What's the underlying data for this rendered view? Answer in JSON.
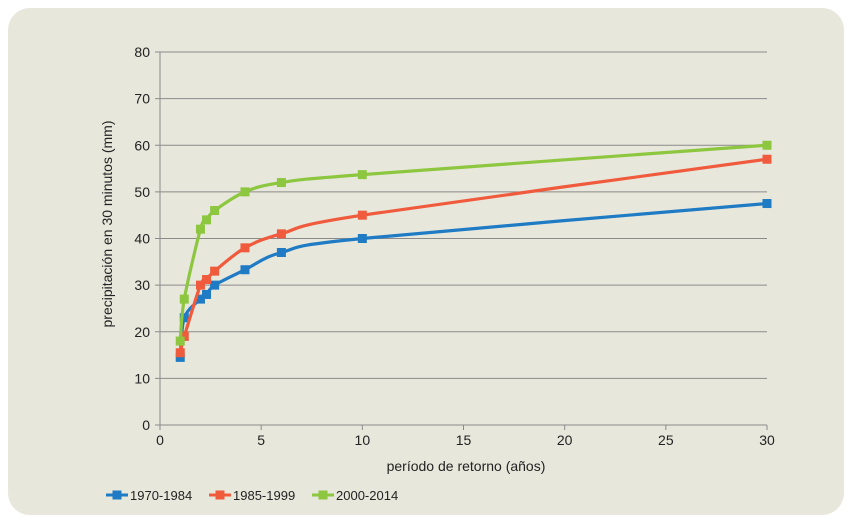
{
  "chart_data": {
    "type": "line",
    "xlabel": "período de retorno (años)",
    "ylabel": "precipitación en 30 minutos (mm)",
    "xlim": [
      0,
      30
    ],
    "ylim": [
      0,
      80
    ],
    "x_ticks": [
      0,
      5,
      10,
      15,
      20,
      25,
      30
    ],
    "y_ticks": [
      0,
      10,
      20,
      30,
      40,
      50,
      60,
      70,
      80
    ],
    "grid": "horizontal",
    "smooth": true,
    "legend_position": "bottom-left",
    "background_color": "#e8e7dc",
    "series": [
      {
        "name": "1970-1984",
        "color": "#1f7bc4",
        "points": [
          {
            "x": 1.0,
            "y": 14.5
          },
          {
            "x": 1.2,
            "y": 23.0
          },
          {
            "x": 2.0,
            "y": 27.0
          },
          {
            "x": 2.3,
            "y": 28.0
          },
          {
            "x": 2.7,
            "y": 30.0
          },
          {
            "x": 4.2,
            "y": 33.3
          },
          {
            "x": 6.0,
            "y": 37.0
          },
          {
            "x": 10.0,
            "y": 40.0
          },
          {
            "x": 30.0,
            "y": 47.5
          }
        ]
      },
      {
        "name": "1985-1999",
        "color": "#ef5b3c",
        "points": [
          {
            "x": 1.0,
            "y": 15.5
          },
          {
            "x": 1.2,
            "y": 19.0
          },
          {
            "x": 2.0,
            "y": 30.0
          },
          {
            "x": 2.3,
            "y": 31.2
          },
          {
            "x": 2.7,
            "y": 33.0
          },
          {
            "x": 4.2,
            "y": 38.0
          },
          {
            "x": 6.0,
            "y": 41.0
          },
          {
            "x": 10.0,
            "y": 45.0
          },
          {
            "x": 30.0,
            "y": 57.0
          }
        ]
      },
      {
        "name": "2000-2014",
        "color": "#8dc63f",
        "points": [
          {
            "x": 1.0,
            "y": 18.0
          },
          {
            "x": 1.2,
            "y": 27.0
          },
          {
            "x": 2.0,
            "y": 42.0
          },
          {
            "x": 2.3,
            "y": 44.0
          },
          {
            "x": 2.7,
            "y": 46.0
          },
          {
            "x": 4.2,
            "y": 50.0
          },
          {
            "x": 6.0,
            "y": 52.0
          },
          {
            "x": 10.0,
            "y": 53.7
          },
          {
            "x": 30.0,
            "y": 60.0
          }
        ]
      }
    ]
  }
}
